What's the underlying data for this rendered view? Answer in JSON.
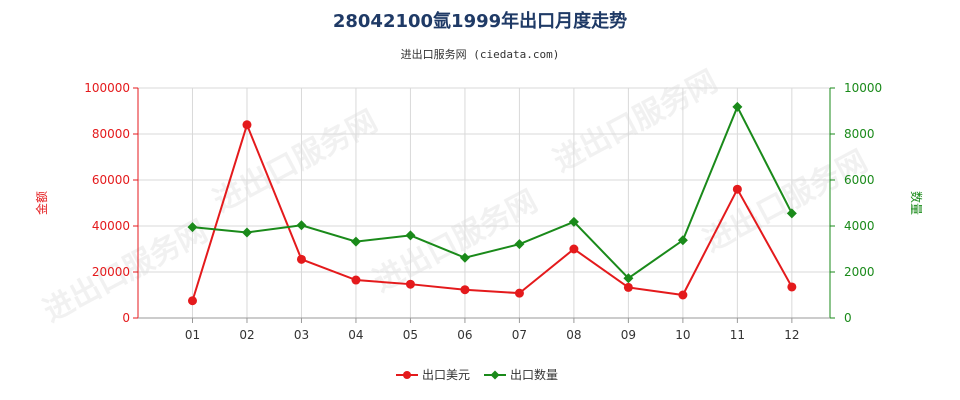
{
  "chart_data": {
    "type": "line",
    "title": "28042100氩1999年出口月度走势",
    "subtitle": "进出口服务网 (ciedata.com)",
    "categories": [
      "01",
      "02",
      "03",
      "04",
      "05",
      "06",
      "07",
      "08",
      "09",
      "10",
      "11",
      "12"
    ],
    "y_left": {
      "label": "金额",
      "lim": [
        0,
        100000
      ],
      "ticks": [
        0,
        20000,
        40000,
        60000,
        80000,
        100000
      ],
      "color": "#e41a1c"
    },
    "y_right": {
      "label": "数量",
      "lim": [
        0,
        10000
      ],
      "ticks": [
        0,
        2000,
        4000,
        6000,
        8000,
        10000
      ],
      "color": "#1a8a1a"
    },
    "series": [
      {
        "name": "出口美元",
        "axis": "left",
        "color": "#e41a1c",
        "marker": "circle",
        "values": [
          7500,
          84000,
          25500,
          16500,
          14700,
          12300,
          10800,
          30000,
          13300,
          10000,
          56000,
          13500
        ]
      },
      {
        "name": "出口数量",
        "axis": "right",
        "color": "#1a8a1a",
        "marker": "diamond",
        "values": [
          3950,
          3720,
          4030,
          3320,
          3590,
          2620,
          3210,
          4180,
          1730,
          3380,
          9180,
          4550
        ]
      }
    ],
    "grid": true,
    "legend": "bottom-center",
    "watermark": "进出口服务网"
  }
}
